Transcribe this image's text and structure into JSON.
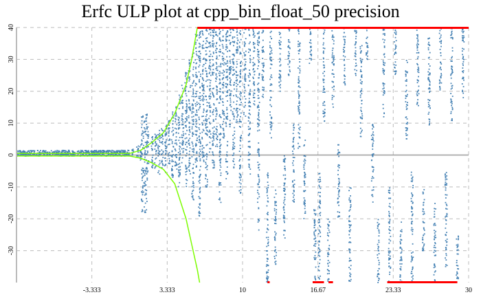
{
  "chart_data": {
    "type": "scatter",
    "title": "Erfc ULP plot at cpp_bin_float_50 precision",
    "xlabel": "",
    "ylabel": "",
    "xlim": [
      -10,
      30
    ],
    "ylim": [
      -40,
      40
    ],
    "grid": true,
    "x_ticks": [
      "-3.333",
      "3.333",
      "10",
      "16.67",
      "23.33",
      "30"
    ],
    "x_tick_values": [
      -3.333,
      3.333,
      10,
      16.67,
      23.33,
      30
    ],
    "y_ticks": [
      "40",
      "30",
      "20",
      "10",
      "0",
      "-10",
      "-20",
      "-30"
    ],
    "y_tick_values": [
      40,
      30,
      20,
      10,
      0,
      -10,
      -20,
      -30
    ],
    "colors": {
      "points": "#4682b4",
      "bound": "#7cfc00",
      "clipped": "#ff0000",
      "grid": "#bbbbbb",
      "axis": "#bbbbbb"
    },
    "band": {
      "x": [
        -10,
        0
      ],
      "y": [
        -0.3,
        1.5
      ]
    },
    "spike": {
      "x": 1.3,
      "y": [
        -18,
        13
      ]
    },
    "streaks": [
      [
        0.3,
        -0.5,
        2
      ],
      [
        0.7,
        -1,
        3
      ],
      [
        1.0,
        -2,
        4
      ],
      [
        1.6,
        -8,
        9
      ],
      [
        2.0,
        -6,
        6
      ],
      [
        2.3,
        -5,
        7
      ],
      [
        2.6,
        -6,
        8
      ],
      [
        2.9,
        -4,
        9
      ],
      [
        3.2,
        -6,
        10
      ],
      [
        3.5,
        -3,
        12
      ],
      [
        3.8,
        -8,
        14
      ],
      [
        4.1,
        -5,
        16
      ],
      [
        4.4,
        -10,
        19
      ],
      [
        4.7,
        -3,
        22
      ],
      [
        5.0,
        -12,
        26
      ],
      [
        5.3,
        -6,
        30
      ],
      [
        5.6,
        -14,
        34
      ],
      [
        5.9,
        -4,
        38
      ],
      [
        6.2,
        -20,
        40
      ],
      [
        6.5,
        -2,
        40
      ],
      [
        6.8,
        -10,
        40
      ],
      [
        7.1,
        0,
        40
      ],
      [
        7.4,
        -5,
        40
      ],
      [
        7.7,
        2,
        40
      ],
      [
        8.0,
        -15,
        40
      ],
      [
        8.3,
        5,
        40
      ],
      [
        8.6,
        -8,
        40
      ],
      [
        8.9,
        8,
        40
      ],
      [
        9.2,
        -4,
        40
      ],
      [
        9.5,
        10,
        40
      ],
      [
        9.8,
        -12,
        40
      ],
      [
        10.2,
        12,
        40
      ],
      [
        10.6,
        -6,
        40
      ],
      [
        11.0,
        15,
        40
      ],
      [
        11.4,
        -25,
        40
      ],
      [
        11.8,
        18,
        40
      ],
      [
        12.2,
        -40,
        -5
      ],
      [
        12.5,
        5,
        40
      ],
      [
        12.9,
        -35,
        -10
      ],
      [
        13.3,
        20,
        40
      ],
      [
        13.7,
        -30,
        0
      ],
      [
        14.1,
        25,
        40
      ],
      [
        14.5,
        -15,
        10
      ],
      [
        15.0,
        2,
        40
      ],
      [
        15.5,
        -20,
        5
      ],
      [
        16.0,
        28,
        40
      ],
      [
        16.4,
        -40,
        -15
      ],
      [
        16.8,
        -40,
        -5
      ],
      [
        17.2,
        10,
        40
      ],
      [
        17.6,
        -40,
        -20
      ],
      [
        18.0,
        15,
        40
      ],
      [
        18.5,
        -20,
        5
      ],
      [
        19.0,
        22,
        40
      ],
      [
        19.5,
        -40,
        -10
      ],
      [
        20.0,
        25,
        40
      ],
      [
        20.5,
        5,
        35
      ],
      [
        21.0,
        30,
        40
      ],
      [
        21.5,
        -15,
        10
      ],
      [
        22.0,
        -40,
        -20
      ],
      [
        22.5,
        12,
        40
      ],
      [
        23.0,
        -40,
        -10
      ],
      [
        23.5,
        25,
        40
      ],
      [
        24.0,
        -40,
        -20
      ],
      [
        24.5,
        5,
        30
      ],
      [
        25.0,
        -40,
        -5
      ],
      [
        25.5,
        15,
        40
      ],
      [
        26.0,
        -30,
        -10
      ],
      [
        26.5,
        8,
        38
      ],
      [
        27.0,
        -40,
        -15
      ],
      [
        27.5,
        20,
        40
      ],
      [
        28.0,
        -35,
        -5
      ],
      [
        28.5,
        10,
        40
      ],
      [
        29.0,
        -40,
        -25
      ],
      [
        29.5,
        18,
        40
      ]
    ],
    "upper_bound": {
      "x": [
        -10,
        0,
        1,
        2,
        3,
        3.333,
        4,
        5,
        5.5,
        6
      ],
      "y": [
        0.5,
        0.5,
        1.5,
        4,
        7,
        9,
        13,
        22,
        30,
        40
      ]
    },
    "lower_bound": {
      "x": [
        -10,
        0,
        1,
        2,
        3,
        4,
        5,
        5.5,
        6,
        6.2
      ],
      "y": [
        -0.3,
        -0.3,
        -1,
        -2.5,
        -4.5,
        -9,
        -20,
        -28,
        -36,
        -40
      ]
    },
    "clipped_top": [
      [
        6,
        30
      ]
    ],
    "clipped_bottom": [
      [
        12.2,
        12.4
      ],
      [
        16.2,
        17.2
      ],
      [
        17.6,
        18.0
      ],
      [
        22.8,
        29.0
      ]
    ]
  }
}
